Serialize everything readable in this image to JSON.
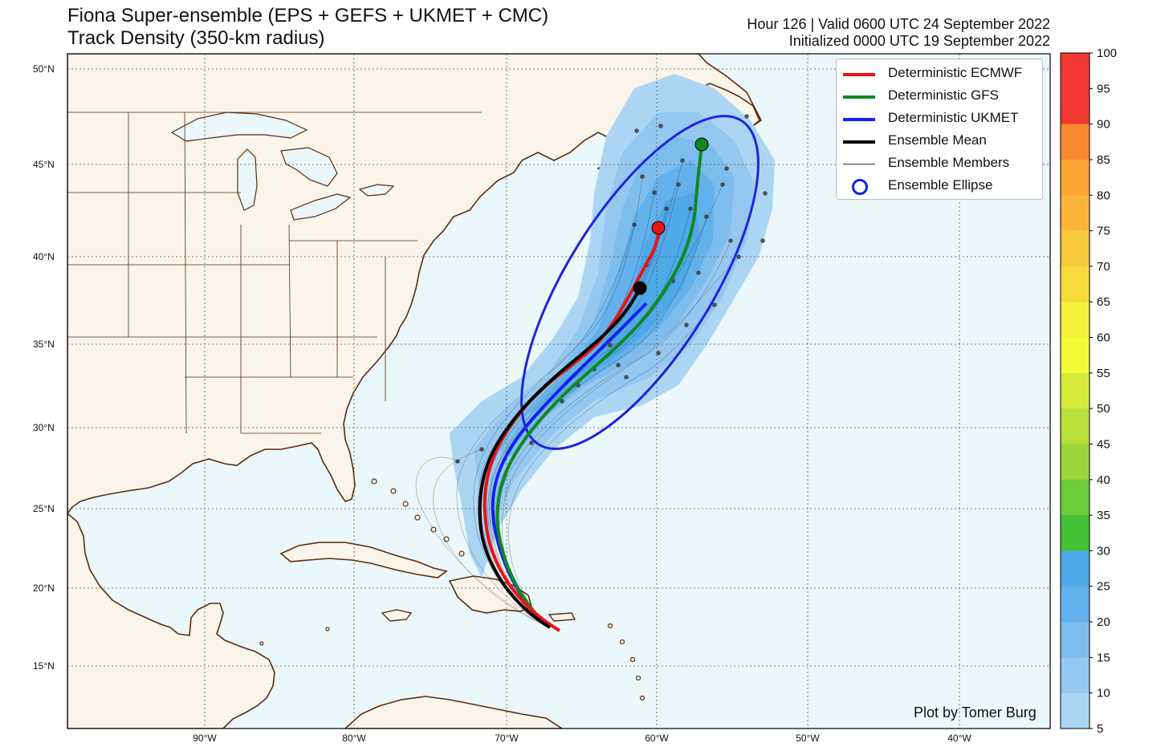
{
  "title_line1": "Fiona Super-ensemble (EPS + GEFS + UKMET + CMC)",
  "title_line2": "Track Density (350-km radius)",
  "valid_text": "Hour 126 | Valid 0600 UTC 24 September 2022",
  "init_text": "Initialized 0000 UTC 19 September 2022",
  "lat_labels": [
    "50°N",
    "45°N",
    "40°N",
    "35°N",
    "30°N",
    "25°N",
    "20°N",
    "15°N"
  ],
  "lon_labels": [
    "90°W",
    "80°W",
    "70°W",
    "60°W",
    "50°W",
    "40°W"
  ],
  "legend": {
    "ecmwf": "Deterministic ECMWF",
    "gfs": "Deterministic GFS",
    "ukmet": "Deterministic UKMET",
    "mean": "Ensemble Mean",
    "members": "Ensemble Members",
    "ellipse": "Ensemble Ellipse"
  },
  "colorbar": {
    "ticks": [
      "100",
      "95",
      "90",
      "85",
      "80",
      "75",
      "70",
      "65",
      "60",
      "55",
      "50",
      "45",
      "40",
      "35",
      "30",
      "25",
      "20",
      "15",
      "10",
      "5"
    ],
    "colors": [
      "#f23a32",
      "#f23a32",
      "#fa8a30",
      "#fba334",
      "#fbb63a",
      "#f8c93c",
      "#f6db3a",
      "#f5f03a",
      "#f4f93a",
      "#d6ea3a",
      "#b8e03a",
      "#9ad63a",
      "#6ccc3a",
      "#44c235",
      "#4fa8e8",
      "#62b1ec",
      "#7dbdee",
      "#95c8f0",
      "#acd5f4"
    ]
  },
  "credit": "Plot by Tomer Burg",
  "colors": {
    "ecmwf": "#ee1111",
    "gfs": "#118822",
    "ukmet": "#1122ee",
    "mean": "#000000",
    "ocean": "#eaf7fb",
    "land": "#faf4ea",
    "border": "#5a2d0c"
  }
}
